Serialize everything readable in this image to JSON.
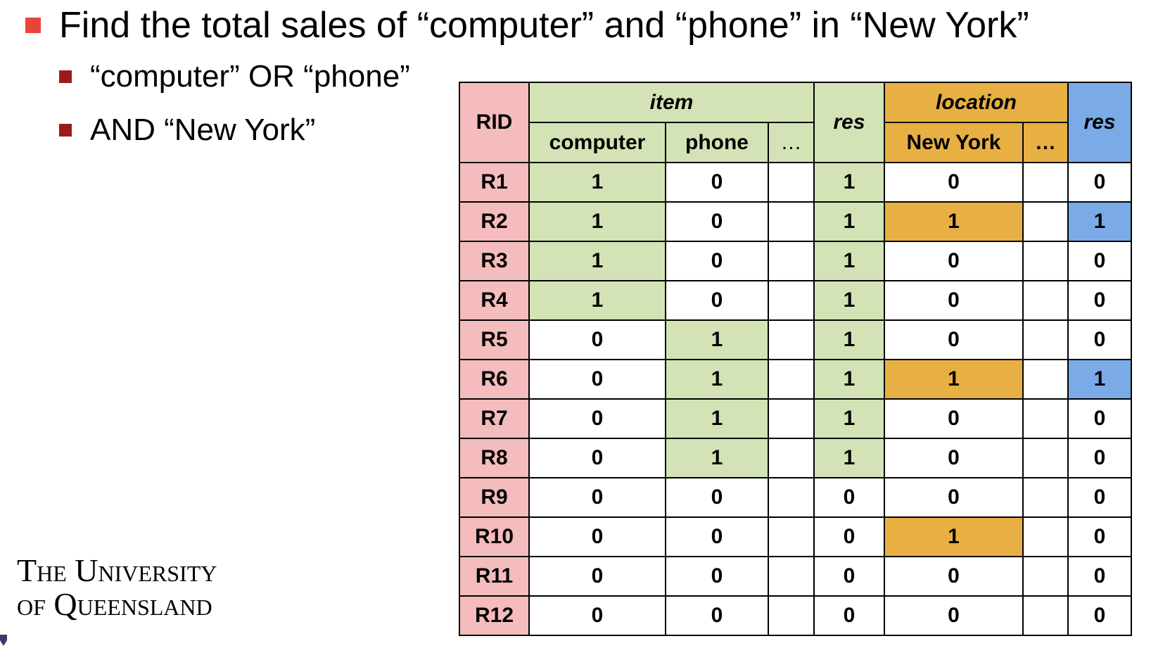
{
  "heading": {
    "text": "Find the total sales of “computer” and “phone” in “New York”",
    "bullet_color": "#e8443a"
  },
  "sub_bullets": [
    "“computer” OR “phone”",
    "AND “New York”"
  ],
  "logo": {
    "line1": "The University",
    "line2": "of Queensland"
  },
  "colors": {
    "rid": "#f4bcbc",
    "item_match": "#d3e3b5",
    "location_match": "#e8b042",
    "result_match": "#7aabe6"
  },
  "table": {
    "rid_header": "RID",
    "item_group": "item",
    "location_group": "location",
    "res_header_1": "res",
    "res_header_2": "res",
    "item_columns": [
      "computer",
      "phone",
      "…"
    ],
    "location_columns": [
      "New York",
      "…"
    ],
    "rows": [
      {
        "rid": "R1",
        "computer": "1",
        "phone": "0",
        "res1": "1",
        "new_york": "0",
        "res2": "0"
      },
      {
        "rid": "R2",
        "computer": "1",
        "phone": "0",
        "res1": "1",
        "new_york": "1",
        "res2": "1"
      },
      {
        "rid": "R3",
        "computer": "1",
        "phone": "0",
        "res1": "1",
        "new_york": "0",
        "res2": "0"
      },
      {
        "rid": "R4",
        "computer": "1",
        "phone": "0",
        "res1": "1",
        "new_york": "0",
        "res2": "0"
      },
      {
        "rid": "R5",
        "computer": "0",
        "phone": "1",
        "res1": "1",
        "new_york": "0",
        "res2": "0"
      },
      {
        "rid": "R6",
        "computer": "0",
        "phone": "1",
        "res1": "1",
        "new_york": "1",
        "res2": "1"
      },
      {
        "rid": "R7",
        "computer": "0",
        "phone": "1",
        "res1": "1",
        "new_york": "0",
        "res2": "0"
      },
      {
        "rid": "R8",
        "computer": "0",
        "phone": "1",
        "res1": "1",
        "new_york": "0",
        "res2": "0"
      },
      {
        "rid": "R9",
        "computer": "0",
        "phone": "0",
        "res1": "0",
        "new_york": "0",
        "res2": "0"
      },
      {
        "rid": "R10",
        "computer": "0",
        "phone": "0",
        "res1": "0",
        "new_york": "1",
        "res2": "0"
      },
      {
        "rid": "R11",
        "computer": "0",
        "phone": "0",
        "res1": "0",
        "new_york": "0",
        "res2": "0"
      },
      {
        "rid": "R12",
        "computer": "0",
        "phone": "0",
        "res1": "0",
        "new_york": "0",
        "res2": "0"
      }
    ]
  }
}
